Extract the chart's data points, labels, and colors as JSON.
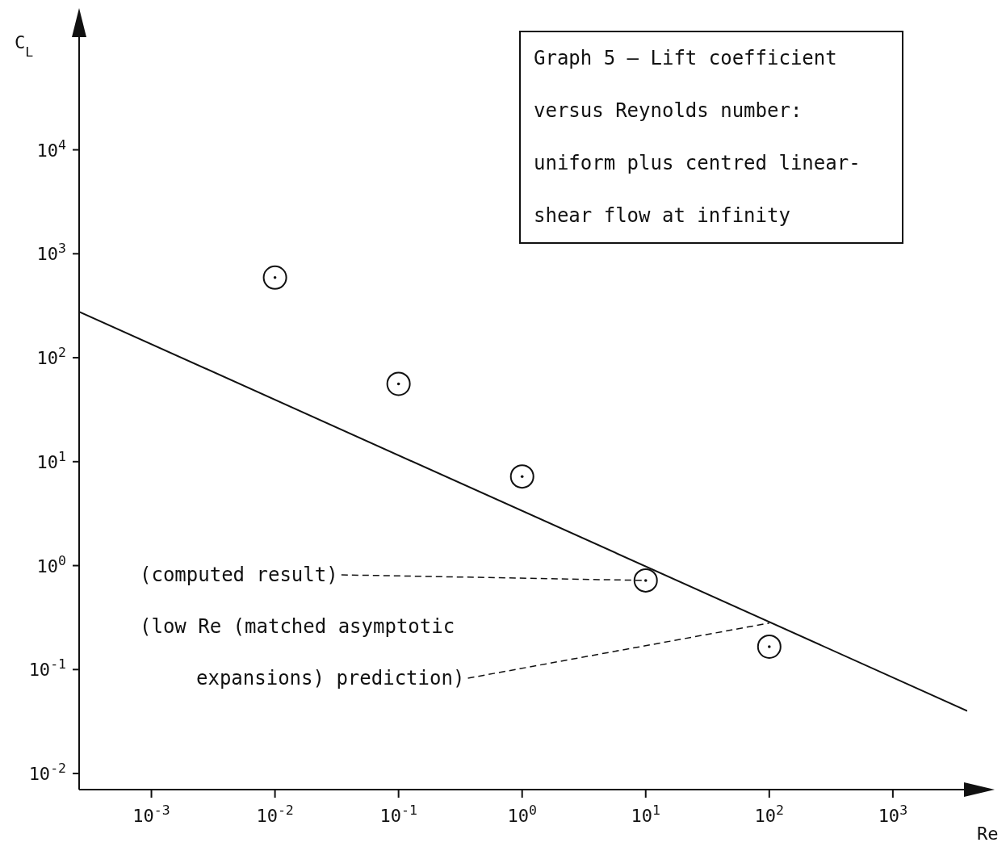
{
  "chart_data": {
    "type": "scatter",
    "title": "Graph 5 – Lift coefficient versus Reynolds number: uniform plus centred linear-shear flow at infinity",
    "xlabel": "Re",
    "ylabel": "C$_{L}$",
    "log": "xy",
    "grid": false,
    "legend": false,
    "marker": "circle",
    "xlim": [
      0.00026,
      4000
    ],
    "ylim": [
      0.007,
      140000
    ],
    "xticks": [
      {
        "value": 0.001,
        "label": "10$^{-3}$"
      },
      {
        "value": 0.01,
        "label": "10$^{-2}$"
      },
      {
        "value": 0.1,
        "label": "10$^{-1}$"
      },
      {
        "value": 1,
        "label": "10$^{0}$"
      },
      {
        "value": 10,
        "label": "10$^{1}$"
      },
      {
        "value": 100,
        "label": "10$^{2}$"
      },
      {
        "value": 1000,
        "label": "10$^{3}$"
      }
    ],
    "yticks": [
      {
        "value": 0.01,
        "label": "10$^{-2}$"
      },
      {
        "value": 0.1,
        "label": "10$^{-1}$"
      },
      {
        "value": 1,
        "label": "10$^{0}$"
      },
      {
        "value": 10,
        "label": "10$^{1}$"
      },
      {
        "value": 100,
        "label": "10$^{2}$"
      },
      {
        "value": 1000,
        "label": "10$^{3}$"
      },
      {
        "value": 10000,
        "label": "10$^{4}$"
      }
    ],
    "series": [
      {
        "type": "scatter",
        "color": "#111111",
        "x": [
          0.01,
          0.1,
          1,
          10,
          100
        ],
        "values": [
          590,
          56,
          7.2,
          0.72,
          0.166
        ]
      },
      {
        "type": "line",
        "color": "#111111",
        "marker": "none",
        "line_style": "solid",
        "x": [
          0.00026,
          4000
        ],
        "values": [
          277,
          0.04
        ]
      }
    ],
    "annotations": [
      {
        "text": "(computed result)",
        "x": 10,
        "y": 0.72
      },
      "(low Re (matched asymptotic",
      {
        "text": "expansions) prediction)",
        "x": 100,
        "y": 0.28
      }
    ]
  }
}
